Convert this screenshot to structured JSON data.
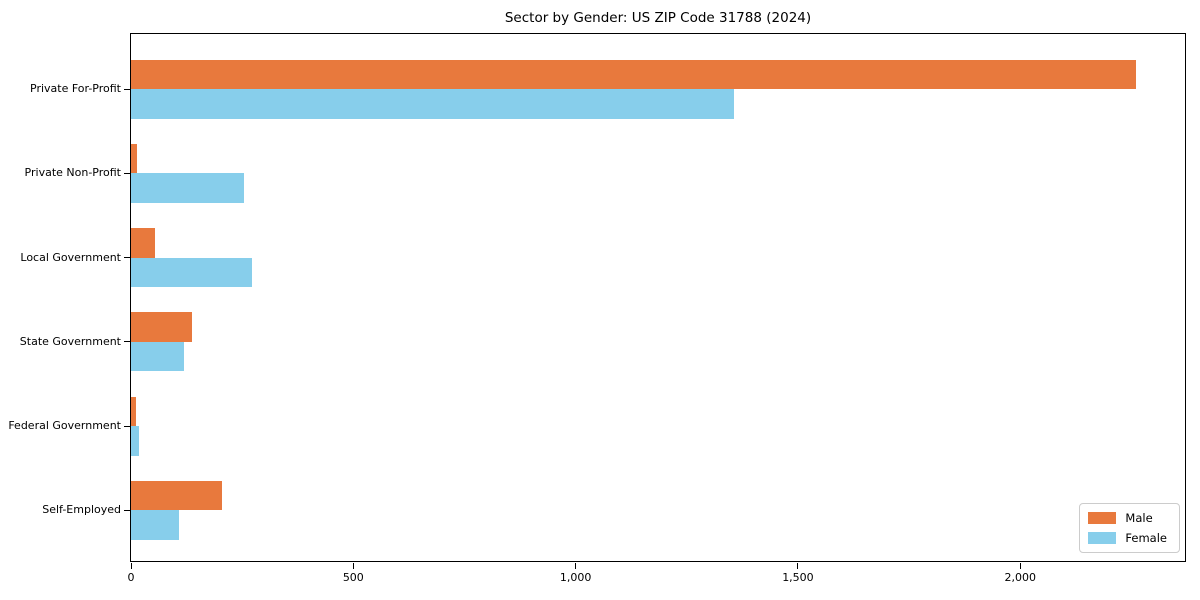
{
  "figure": {
    "background": "#ffffff",
    "axis_color": "#000000"
  },
  "chart_data": {
    "type": "bar",
    "orientation": "horizontal",
    "title": "Sector by Gender: US ZIP Code 31788 (2024)",
    "xlabel": "",
    "ylabel": "",
    "grid": false,
    "categories": [
      "Private For-Profit",
      "Private Non-Profit",
      "Local Government",
      "State Government",
      "Federal Government",
      "Self-Employed"
    ],
    "series": [
      {
        "name": "Male",
        "color": "#e8793d",
        "values": [
          2260,
          14,
          54,
          136,
          12,
          205
        ]
      },
      {
        "name": "Female",
        "color": "#87ceeb",
        "values": [
          1355,
          254,
          273,
          120,
          19,
          107
        ]
      }
    ],
    "xlim": [
      0,
      2375
    ],
    "xticks": [
      {
        "value": 0,
        "label": "0"
      },
      {
        "value": 500,
        "label": "500"
      },
      {
        "value": 1000,
        "label": "1,000"
      },
      {
        "value": 1500,
        "label": "1,500"
      },
      {
        "value": 2000,
        "label": "2,000"
      }
    ],
    "legend_position": "lower right"
  },
  "legend": {
    "items": [
      {
        "label": "Male",
        "color": "#e8793d"
      },
      {
        "label": "Female",
        "color": "#87ceeb"
      }
    ]
  }
}
